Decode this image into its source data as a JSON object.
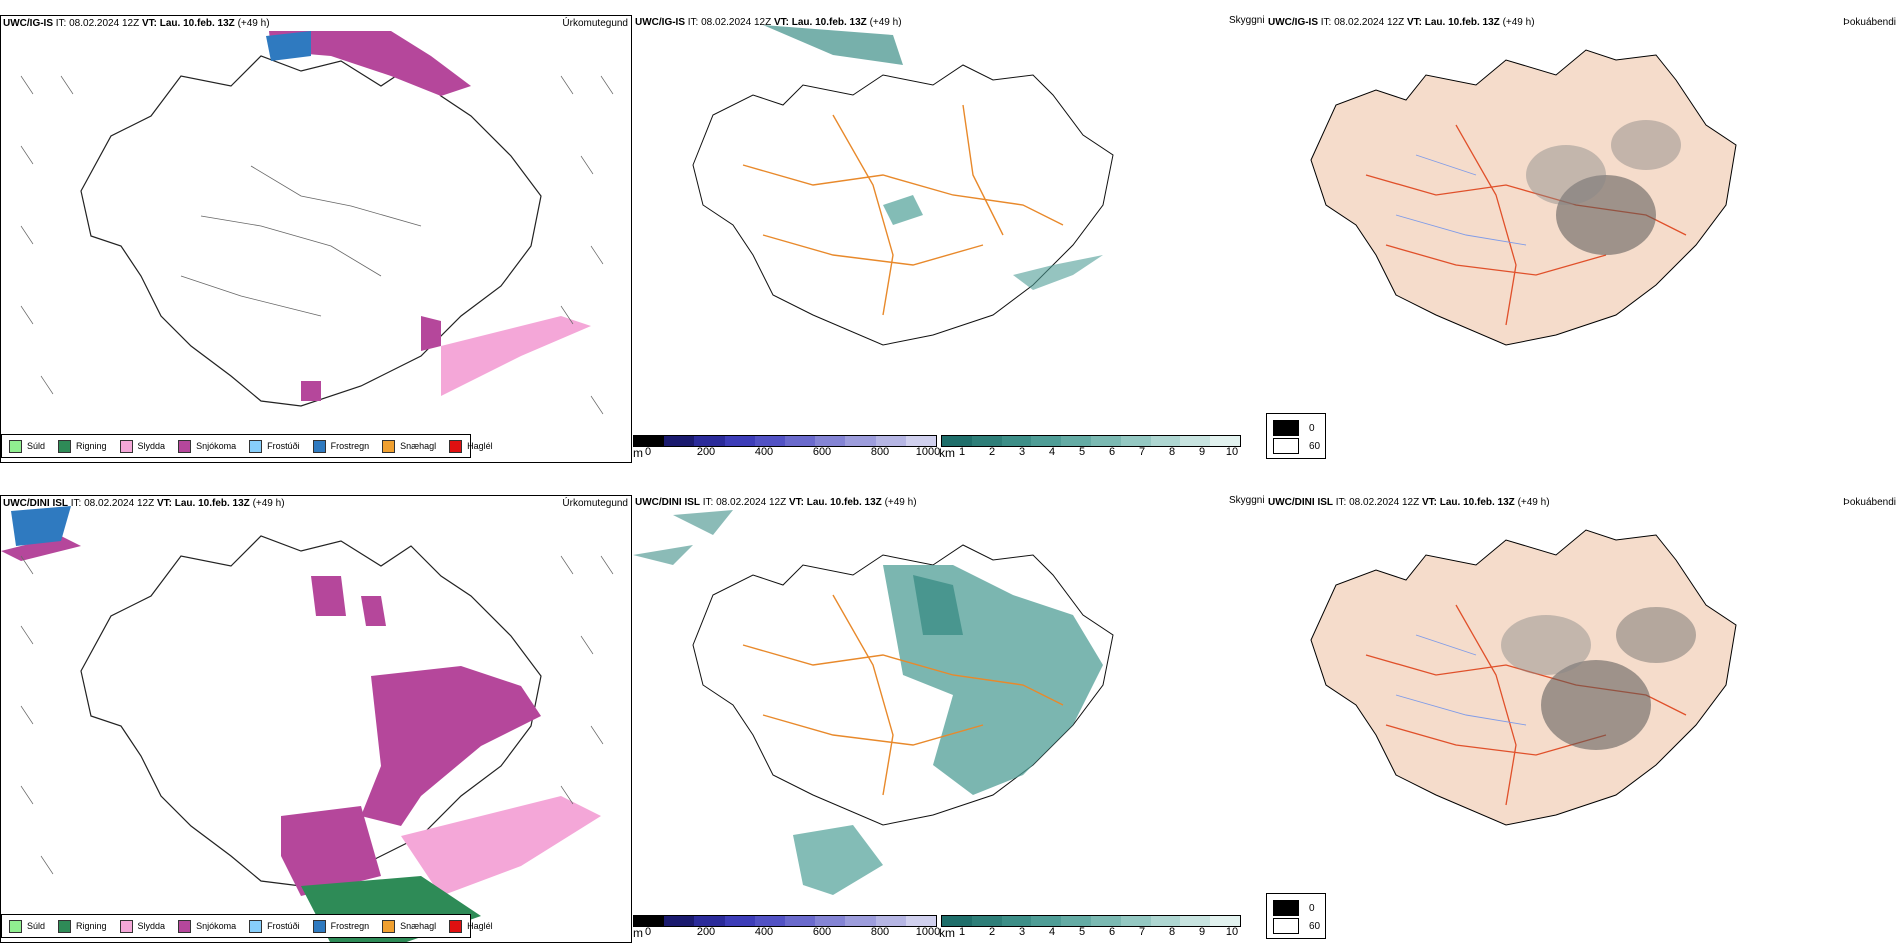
{
  "rows": [
    {
      "model": "UWC/IG-IS",
      "it": "08.02.2024 12Z",
      "vt": "Lau. 10.feb. 13Z",
      "lead": "(+49 h)"
    },
    {
      "model": "UWC/DINI ISL",
      "it": "08.02.2024 12Z",
      "vt": "Lau. 10.feb. 13Z",
      "lead": "(+49 h)"
    }
  ],
  "labels": {
    "it_prefix": "IT:",
    "vt_prefix": "VT:",
    "precip_type": "Úrkomutegund",
    "visibility": "Skyggni",
    "fog_index": "Þokuábendi"
  },
  "precip_legend": [
    {
      "label": "Súld",
      "color": "#90ee90"
    },
    {
      "label": "Rigning",
      "color": "#2e8b57"
    },
    {
      "label": "Slydda",
      "color": "#f4a7d8"
    },
    {
      "label": "Snjókoma",
      "color": "#b5479b"
    },
    {
      "label": "Frostúði",
      "color": "#87cefa"
    },
    {
      "label": "Frostregn",
      "color": "#2f7ac0"
    },
    {
      "label": "Snæhagl",
      "color": "#f0a030"
    },
    {
      "label": "Haglél",
      "color": "#e01010"
    }
  ],
  "visibility_scale": {
    "m_unit": "m",
    "m_ticks": [
      "0",
      "200",
      "400",
      "600",
      "800",
      "1000"
    ],
    "km_unit": "km",
    "km_ticks": [
      "1",
      "2",
      "3",
      "4",
      "5",
      "6",
      "7",
      "8",
      "9",
      "10"
    ],
    "m_colors": [
      "#000000",
      "#1a1a6e",
      "#2b2b9a",
      "#3d3db8",
      "#5252c4",
      "#6a6acc",
      "#8484d4",
      "#9d9ddc",
      "#b6b6e4",
      "#d0d0ee"
    ],
    "km_colors": [
      "#1f6e6a",
      "#2e7e78",
      "#3d8e87",
      "#4f9d96",
      "#64aba4",
      "#7bb9b2",
      "#94c8c2",
      "#aed6d1",
      "#c8e4e0",
      "#e2f2ef"
    ]
  },
  "fog_legend": {
    "high": "0",
    "low": "60"
  },
  "map_colors": {
    "land_fog": "#f5dccb",
    "roads_vis": "#e8892b",
    "roads_fog": "#e0502a",
    "rivers": "#7f9be8",
    "coast": "#000000"
  }
}
